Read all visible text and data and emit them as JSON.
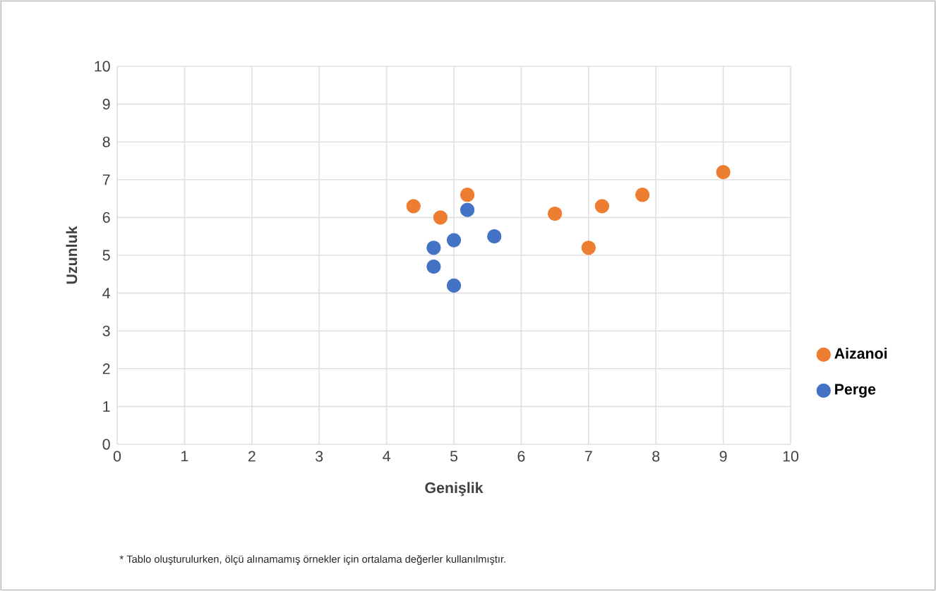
{
  "chart_data": {
    "type": "scatter",
    "xlabel": "Genişlik",
    "ylabel": "Uzunluk",
    "xlim": [
      0,
      10
    ],
    "ylim": [
      0,
      10
    ],
    "xticks": [
      0,
      1,
      2,
      3,
      4,
      5,
      6,
      7,
      8,
      9,
      10
    ],
    "yticks": [
      0,
      1,
      2,
      3,
      4,
      5,
      6,
      7,
      8,
      9,
      10
    ],
    "grid": true,
    "legend": "right",
    "series": [
      {
        "name": "Aizanoi",
        "color": "#ed7d31",
        "x": [
          4.4,
          4.8,
          5.2,
          6.5,
          7.0,
          7.2,
          7.8,
          9.0
        ],
        "values": [
          6.3,
          6.0,
          6.6,
          6.1,
          5.2,
          6.3,
          6.6,
          7.2
        ]
      },
      {
        "name": "Perge",
        "color": "#4472c4",
        "x": [
          5.2,
          4.7,
          4.7,
          5.0,
          5.6,
          5.0
        ],
        "values": [
          6.2,
          5.2,
          4.7,
          5.4,
          5.5,
          4.2
        ]
      }
    ],
    "annotations": [
      "* Tablo oluşturulurken, ölçü alınamamış örnekler için ortalama değerler kullanılmıştır."
    ]
  }
}
